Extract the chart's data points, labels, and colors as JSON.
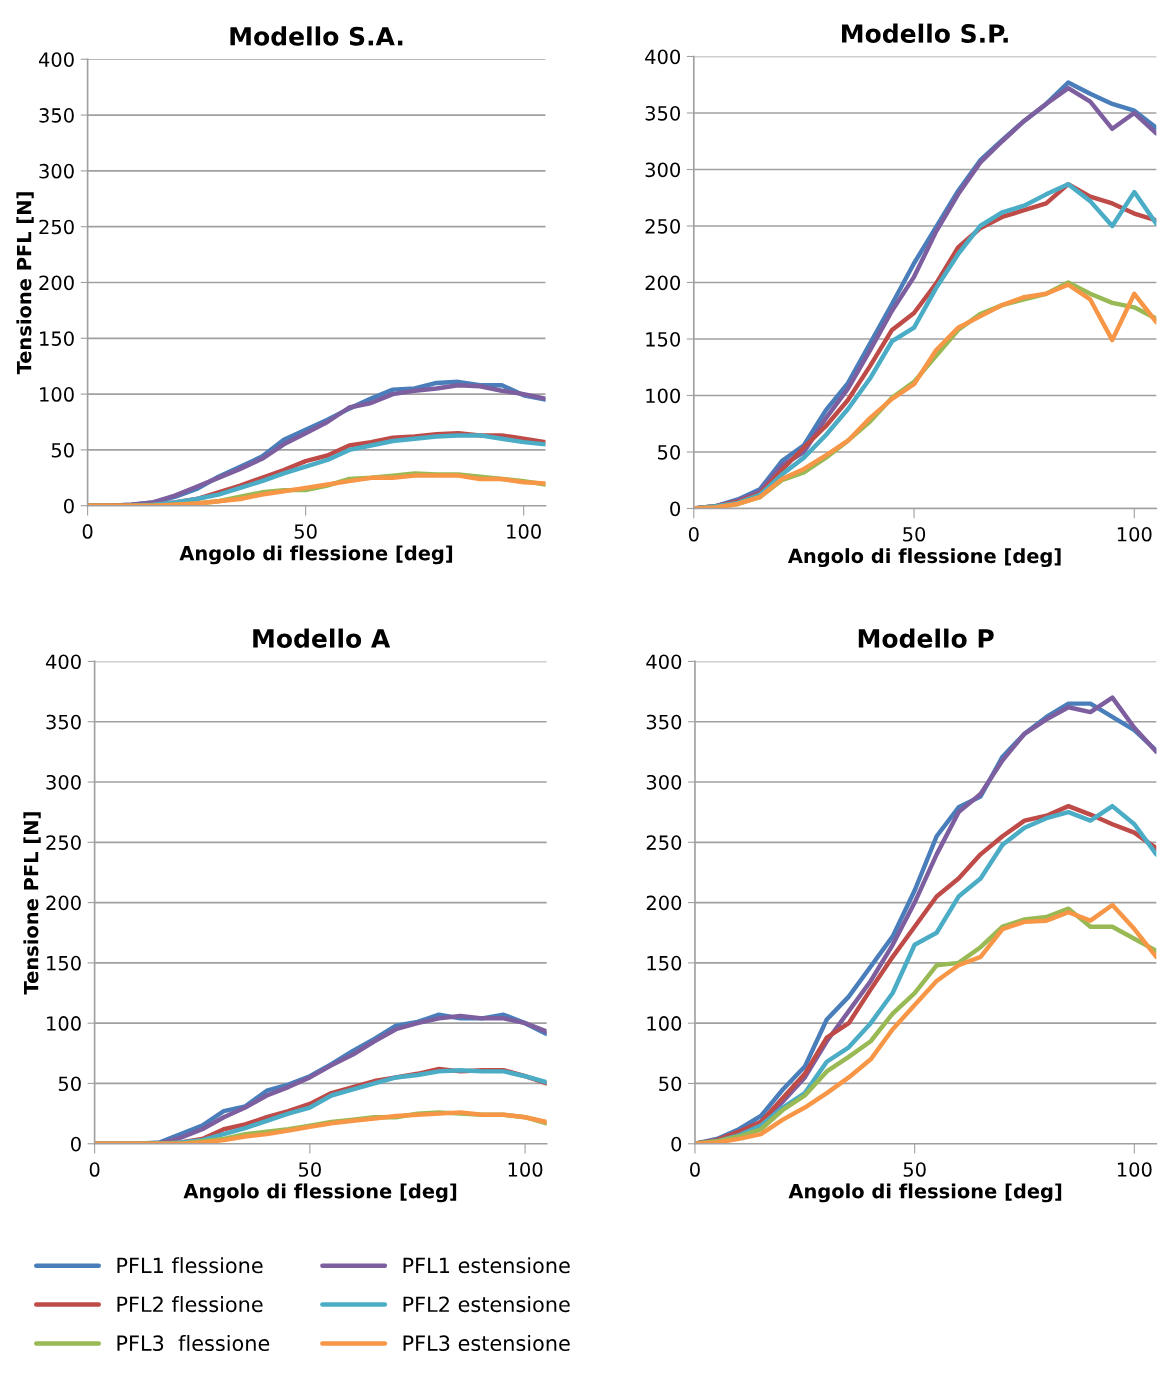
{
  "chart_data": [
    {
      "type": "line",
      "title": "Modello S.A.",
      "xlabel": "Angolo di flessione [deg]",
      "ylabel": "Tensione PFL [N]",
      "xlim": [
        0,
        105
      ],
      "xticks": [
        0,
        50,
        100
      ],
      "ylim": [
        0,
        400
      ],
      "yticks": [
        0,
        50,
        100,
        150,
        200,
        250,
        300,
        350,
        400
      ],
      "grid": "y",
      "marker": "none",
      "line_style": "solid",
      "legend": "bottom",
      "x": [
        0,
        5,
        10,
        15,
        20,
        25,
        30,
        35,
        40,
        45,
        50,
        55,
        60,
        65,
        70,
        75,
        80,
        85,
        90,
        95,
        100,
        105
      ],
      "series": [
        {
          "name": "PFL1 flessione",
          "color": "#4a7ebb",
          "values": [
            0,
            0,
            1,
            3,
            8,
            15,
            26,
            35,
            44,
            59,
            68,
            77,
            87,
            96,
            104,
            105,
            110,
            111,
            108,
            108,
            99,
            95
          ]
        },
        {
          "name": "PFL1 estensione",
          "color": "#7d5fa0",
          "values": [
            0,
            0,
            1,
            3,
            9,
            17,
            25,
            33,
            42,
            55,
            65,
            75,
            88,
            92,
            100,
            103,
            105,
            108,
            107,
            103,
            100,
            96
          ]
        },
        {
          "name": "PFL2 flessione",
          "color": "#be4b48",
          "values": [
            0,
            0,
            0,
            1,
            3,
            6,
            12,
            18,
            25,
            32,
            40,
            45,
            54,
            57,
            61,
            62,
            64,
            65,
            63,
            63,
            60,
            57
          ]
        },
        {
          "name": "PFL2 estensione",
          "color": "#4bacc6",
          "values": [
            null,
            null,
            0,
            1,
            3,
            6,
            10,
            16,
            22,
            29,
            35,
            41,
            50,
            54,
            58,
            60,
            62,
            63,
            63,
            60,
            57,
            55
          ]
        },
        {
          "name": "PFL3  flessione",
          "color": "#98b954",
          "values": [
            0,
            0,
            0,
            0,
            1,
            2,
            4,
            8,
            12,
            14,
            14,
            18,
            24,
            25,
            27,
            29,
            28,
            28,
            26,
            24,
            22,
            19
          ]
        },
        {
          "name": "PFL3 estensione",
          "color": "#f79646",
          "values": [
            0,
            0,
            0,
            0,
            1,
            2,
            4,
            6,
            10,
            13,
            16,
            19,
            22,
            25,
            25,
            27,
            27,
            27,
            24,
            24,
            21,
            20
          ]
        }
      ]
    },
    {
      "type": "line",
      "title": "Modello S.P.",
      "xlabel": "Angolo di flessione [deg]",
      "xlim": [
        0,
        105
      ],
      "xticks": [
        0,
        50,
        100
      ],
      "ylim": [
        0,
        400
      ],
      "yticks": [
        0,
        50,
        100,
        150,
        200,
        250,
        300,
        350,
        400
      ],
      "grid": "y",
      "marker": "none",
      "line_style": "solid",
      "x": [
        0,
        5,
        10,
        15,
        20,
        25,
        30,
        35,
        40,
        45,
        50,
        55,
        60,
        65,
        70,
        75,
        80,
        85,
        90,
        95,
        100,
        105
      ],
      "series": [
        {
          "color": "#4a7ebb",
          "values": [
            0,
            2,
            8,
            17,
            42,
            56,
            87,
            111,
            146,
            181,
            217,
            249,
            281,
            308,
            326,
            343,
            358,
            377,
            367,
            358,
            352,
            337
          ]
        },
        {
          "color": "#7d5fa0",
          "values": [
            0,
            2,
            7,
            15,
            38,
            50,
            80,
            106,
            140,
            175,
            205,
            245,
            278,
            306,
            325,
            343,
            358,
            372,
            360,
            336,
            350,
            332
          ]
        },
        {
          "color": "#be4b48",
          "values": [
            0,
            2,
            6,
            13,
            34,
            54,
            73,
            96,
            126,
            158,
            173,
            199,
            231,
            248,
            258,
            264,
            270,
            287,
            276,
            270,
            261,
            255
          ]
        },
        {
          "color": "#4bacc6",
          "values": [
            0,
            2,
            5,
            12,
            30,
            45,
            65,
            88,
            115,
            148,
            160,
            195,
            225,
            250,
            262,
            268,
            278,
            287,
            272,
            250,
            280,
            252
          ]
        },
        {
          "color": "#98b954",
          "values": [
            0,
            1,
            4,
            10,
            25,
            32,
            45,
            60,
            77,
            98,
            112,
            135,
            158,
            172,
            180,
            185,
            190,
            200,
            190,
            182,
            178,
            168
          ]
        },
        {
          "color": "#f79646",
          "values": [
            0,
            1,
            4,
            10,
            26,
            35,
            47,
            60,
            80,
            97,
            110,
            140,
            160,
            170,
            180,
            187,
            190,
            198,
            185,
            149,
            190,
            165
          ]
        }
      ]
    },
    {
      "type": "line",
      "title": "Modello A",
      "xlabel": "Angolo di flessione [deg]",
      "ylabel": "Tensione PFL [N]",
      "xlim": [
        0,
        105
      ],
      "xticks": [
        0,
        50,
        100
      ],
      "ylim": [
        0,
        400
      ],
      "yticks": [
        0,
        50,
        100,
        150,
        200,
        250,
        300,
        350,
        400
      ],
      "grid": "y",
      "marker": "none",
      "line_style": "solid",
      "x": [
        0,
        5,
        10,
        15,
        20,
        25,
        30,
        35,
        40,
        45,
        50,
        55,
        60,
        65,
        70,
        75,
        80,
        85,
        90,
        95,
        100,
        105
      ],
      "series": [
        {
          "color": "#4a7ebb",
          "values": [
            null,
            null,
            0,
            1,
            8,
            15,
            27,
            31,
            44,
            49,
            56,
            66,
            77,
            87,
            98,
            101,
            107,
            104,
            104,
            107,
            100,
            91
          ]
        },
        {
          "color": "#7d5fa0",
          "values": [
            0,
            0,
            0,
            0,
            5,
            12,
            22,
            30,
            40,
            47,
            55,
            65,
            74,
            85,
            95,
            100,
            104,
            106,
            104,
            104,
            100,
            93
          ]
        },
        {
          "color": "#be4b48",
          "values": [
            0,
            0,
            0,
            0,
            1,
            4,
            12,
            16,
            22,
            27,
            33,
            42,
            47,
            52,
            55,
            58,
            62,
            60,
            61,
            61,
            56,
            50
          ]
        },
        {
          "color": "#4bacc6",
          "values": [
            0,
            0,
            0,
            0,
            1,
            3,
            8,
            13,
            19,
            25,
            30,
            40,
            45,
            50,
            55,
            57,
            60,
            61,
            60,
            60,
            56,
            51
          ]
        },
        {
          "color": "#98b954",
          "values": [
            0,
            0,
            0,
            0,
            0,
            2,
            4,
            8,
            10,
            12,
            15,
            18,
            20,
            22,
            22,
            25,
            26,
            25,
            24,
            24,
            22,
            17
          ]
        },
        {
          "color": "#f79646",
          "values": [
            0,
            0,
            0,
            0,
            0,
            1,
            3,
            6,
            8,
            11,
            14,
            17,
            19,
            21,
            23,
            24,
            25,
            26,
            24,
            24,
            22,
            18
          ]
        }
      ]
    },
    {
      "type": "line",
      "title": "Modello P",
      "xlabel": "Angolo di flessione [deg]",
      "xlim": [
        0,
        105
      ],
      "xticks": [
        0,
        50,
        100
      ],
      "ylim": [
        0,
        400
      ],
      "yticks": [
        0,
        50,
        100,
        150,
        200,
        250,
        300,
        350,
        400
      ],
      "grid": "y",
      "marker": "none",
      "line_style": "solid",
      "x": [
        0,
        5,
        10,
        15,
        20,
        25,
        30,
        35,
        40,
        45,
        50,
        55,
        60,
        65,
        70,
        75,
        80,
        85,
        90,
        95,
        100,
        105
      ],
      "series": [
        {
          "color": "#4a7ebb",
          "values": [
            0,
            4,
            12,
            23,
            45,
            64,
            103,
            122,
            147,
            172,
            210,
            255,
            279,
            288,
            321,
            340,
            354,
            365,
            365,
            354,
            343,
            326
          ]
        },
        {
          "color": "#7d5fa0",
          "values": [
            0,
            3,
            10,
            18,
            35,
            55,
            85,
            110,
            135,
            165,
            200,
            240,
            275,
            290,
            318,
            340,
            352,
            362,
            358,
            370,
            345,
            325
          ]
        },
        {
          "color": "#be4b48",
          "values": [
            0,
            3,
            10,
            18,
            38,
            58,
            88,
            100,
            128,
            155,
            180,
            205,
            220,
            240,
            255,
            268,
            272,
            280,
            273,
            265,
            258,
            245
          ]
        },
        {
          "color": "#4bacc6",
          "values": [
            0,
            2,
            7,
            15,
            30,
            42,
            68,
            80,
            100,
            125,
            165,
            175,
            205,
            220,
            248,
            262,
            270,
            275,
            268,
            280,
            265,
            240
          ]
        },
        {
          "color": "#98b954",
          "values": [
            0,
            2,
            6,
            12,
            28,
            40,
            60,
            72,
            85,
            108,
            125,
            148,
            150,
            163,
            180,
            186,
            188,
            195,
            180,
            180,
            170,
            160
          ]
        },
        {
          "color": "#f79646",
          "values": [
            0,
            1,
            4,
            8,
            20,
            30,
            42,
            55,
            70,
            95,
            115,
            135,
            148,
            155,
            178,
            184,
            185,
            192,
            185,
            198,
            178,
            155
          ]
        }
      ]
    }
  ]
}
